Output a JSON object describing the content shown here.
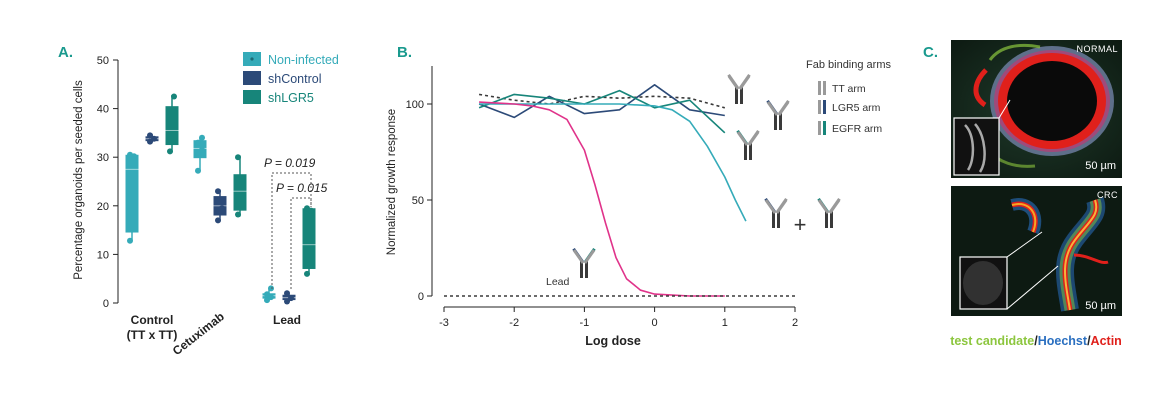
{
  "colors": {
    "teal_light": "#35abb9",
    "navy": "#2c4a78",
    "teal_dark": "#17857a",
    "magenta": "#e0338a",
    "gray": "#9a9a9a",
    "dark_gray": "#3a3a3a",
    "accent_label": "#1a9a8e",
    "green": "#8cc63e",
    "blue": "#2a6fc0",
    "red": "#e0201b"
  },
  "panel_a": {
    "letter": "A.",
    "legend": [
      "Non-infected",
      "shControl",
      "shLGR5"
    ],
    "annotations": [
      "P = 0.019",
      "P = 0.015"
    ]
  },
  "panel_b": {
    "letter": "B.",
    "legend_title": "Fab binding arms",
    "legend": [
      "TT arm",
      "LGR5 arm",
      "EGFR arm"
    ],
    "lead_label": "Lead",
    "plus": "+"
  },
  "panel_c": {
    "letter": "C.",
    "image_top_label": "NORMAL",
    "image_bottom_label": "CRC",
    "scale_bar": "50 µm",
    "stain_parts": [
      {
        "text": "test candidate",
        "color": "#8cc63e"
      },
      {
        "text": "/",
        "color": "#222222"
      },
      {
        "text": "Hoechst",
        "color": "#2a6fc0"
      },
      {
        "text": "/",
        "color": "#222222"
      },
      {
        "text": "Actin",
        "color": "#e0201b"
      }
    ]
  },
  "chart_data": [
    {
      "type": "box",
      "ylabel": "Percentage organoids per seeded cells",
      "xlabel": "",
      "ylim": [
        0,
        50
      ],
      "yticks": [
        0,
        10,
        20,
        30,
        40,
        50
      ],
      "categories": [
        "Control\n(TT x TT)",
        "Cetuximab",
        "Lead"
      ],
      "series": [
        {
          "name": "Non-infected",
          "boxes": [
            {
              "min": 12.8,
              "q1": 14.5,
              "median": 27.5,
              "q3": 30.5,
              "max": 30.5,
              "points": [
                12.8,
                30.2,
                30.5
              ]
            },
            {
              "min": 27.2,
              "q1": 29.8,
              "median": 31.8,
              "q3": 33.5,
              "max": 34.0,
              "points": [
                27.2,
                31.5,
                33.0,
                34.0
              ]
            },
            {
              "min": 0.6,
              "q1": 0.9,
              "median": 1.5,
              "q3": 2.0,
              "max": 3.0,
              "points": [
                0.6,
                1.2,
                1.8,
                3.0
              ]
            }
          ]
        },
        {
          "name": "shControl",
          "boxes": [
            {
              "min": 33.0,
              "q1": 33.3,
              "median": 33.8,
              "q3": 34.3,
              "max": 34.8,
              "points": [
                33.2,
                33.8,
                34.5
              ]
            },
            {
              "min": 16.8,
              "q1": 18.0,
              "median": 20.0,
              "q3": 22.0,
              "max": 23.3,
              "points": [
                17.0,
                19.5,
                23.0
              ]
            },
            {
              "min": 0.2,
              "q1": 0.6,
              "median": 1.1,
              "q3": 1.7,
              "max": 2.2,
              "points": [
                0.3,
                1.0,
                2.0
              ]
            }
          ]
        },
        {
          "name": "shLGR5",
          "boxes": [
            {
              "min": 31.0,
              "q1": 32.5,
              "median": 35.5,
              "q3": 40.5,
              "max": 42.8,
              "points": [
                31.2,
                42.5
              ]
            },
            {
              "min": 17.8,
              "q1": 19.0,
              "median": 23.0,
              "q3": 26.5,
              "max": 30.3,
              "points": [
                18.2,
                25.0,
                30.0
              ]
            },
            {
              "min": 5.8,
              "q1": 7.0,
              "median": 12.0,
              "q3": 19.5,
              "max": 19.5,
              "points": [
                6.0,
                19.0,
                19.5
              ]
            }
          ]
        }
      ]
    },
    {
      "type": "line",
      "xlabel": "Log dose",
      "ylabel": "Normalized growth response",
      "xlim": [
        -3,
        2
      ],
      "ylim": [
        0,
        120
      ],
      "xticks": [
        -3,
        -2,
        -1,
        0,
        1,
        2
      ],
      "yticks": [
        0,
        50,
        100
      ],
      "series": [
        {
          "color": "#3a3a3a",
          "dash": true,
          "points": [
            [
              -2.5,
              105
            ],
            [
              -2.0,
              102
            ],
            [
              -1.5,
              100
            ],
            [
              -1.0,
              104
            ],
            [
              -0.5,
              103
            ],
            [
              0.0,
              104
            ],
            [
              0.5,
              103
            ],
            [
              1.0,
              98
            ]
          ]
        },
        {
          "color": "#2c4a78",
          "dash": false,
          "points": [
            [
              -2.5,
              100
            ],
            [
              -2.0,
              93
            ],
            [
              -1.5,
              104
            ],
            [
              -1.0,
              95
            ],
            [
              -0.5,
              97
            ],
            [
              0.0,
              110
            ],
            [
              0.5,
              97
            ],
            [
              1.0,
              94
            ]
          ]
        },
        {
          "color": "#17857a",
          "dash": false,
          "points": [
            [
              -2.5,
              98
            ],
            [
              -2.0,
              105
            ],
            [
              -1.5,
              103
            ],
            [
              -1.0,
              100
            ],
            [
              -0.5,
              107
            ],
            [
              0.0,
              98
            ],
            [
              0.5,
              102
            ],
            [
              1.0,
              85
            ]
          ]
        },
        {
          "color": "#35abb9",
          "dash": false,
          "points": [
            [
              -2.5,
              100
            ],
            [
              -2.0,
              100
            ],
            [
              -1.5,
              100
            ],
            [
              -1.0,
              100
            ],
            [
              -0.5,
              100
            ],
            [
              0.0,
              99
            ],
            [
              0.25,
              97
            ],
            [
              0.5,
              91
            ],
            [
              0.75,
              78
            ],
            [
              1.0,
              62
            ],
            [
              1.15,
              50
            ],
            [
              1.3,
              39
            ]
          ]
        },
        {
          "color": "#e0338a",
          "dash": false,
          "points": [
            [
              -2.5,
              101
            ],
            [
              -2.0,
              100
            ],
            [
              -1.75,
              99
            ],
            [
              -1.5,
              97
            ],
            [
              -1.25,
              92
            ],
            [
              -1.0,
              76
            ],
            [
              -0.85,
              58
            ],
            [
              -0.7,
              38
            ],
            [
              -0.55,
              20
            ],
            [
              -0.4,
              9
            ],
            [
              -0.2,
              3
            ],
            [
              0.0,
              1
            ],
            [
              0.5,
              0
            ],
            [
              1.0,
              0
            ]
          ]
        },
        {
          "color": "#3a3a3a",
          "dash": true,
          "points": [
            [
              -3,
              0
            ],
            [
              2,
              0
            ]
          ]
        }
      ]
    }
  ]
}
